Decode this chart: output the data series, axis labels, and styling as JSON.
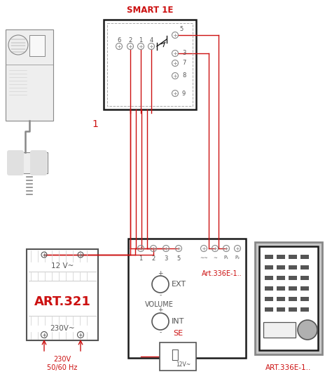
{
  "bg_color": "#ffffff",
  "red": "#cc1111",
  "gray": "#aaaaaa",
  "dark_gray": "#555555",
  "med_gray": "#888888",
  "light_gray": "#cccccc",
  "black": "#1a1a1a",
  "title_smart": "SMART 1E",
  "label_1": "1",
  "label_art321": "ART.321",
  "label_art336_title": "Art.336E-1..",
  "label_art336_bottom": "ART.336E-1..",
  "label_se": "SE",
  "label_ext": "EXT",
  "label_int": "INT",
  "label_volume": "VOLUME",
  "label_12v": "12 V~",
  "label_230v": "230V~",
  "label_230v_hz": "230V\n50/60 Hz",
  "figw": 4.74,
  "figh": 5.5,
  "dpi": 100
}
